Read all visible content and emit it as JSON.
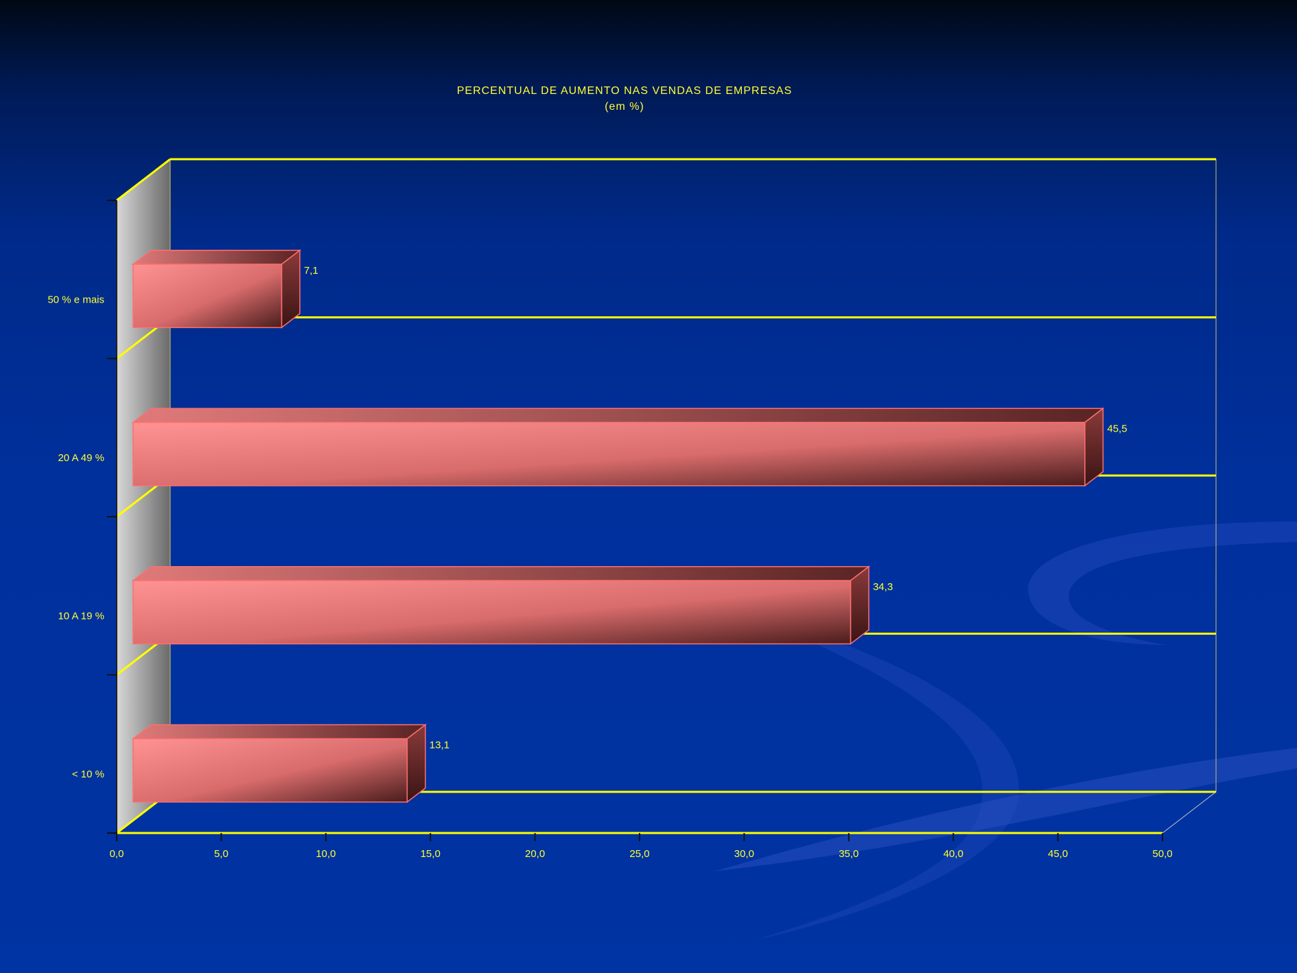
{
  "chart_data": {
    "type": "bar",
    "orientation": "horizontal",
    "style": "3d",
    "title": "PERCENTUAL DE AUMENTO NAS VENDAS DE EMPRESAS",
    "subtitle": "(em %)",
    "categories": [
      "< 10 %",
      "10 A 19 %",
      "20 A 49 %",
      "50 % e mais"
    ],
    "values": [
      13.1,
      34.3,
      45.5,
      7.1
    ],
    "value_labels": [
      "13,1",
      "34,3",
      "45,5",
      "7,1"
    ],
    "xlim": [
      0,
      50
    ],
    "x_ticks": [
      "0,0",
      "5,0",
      "10,0",
      "15,0",
      "20,0",
      "25,0",
      "30,0",
      "35,0",
      "40,0",
      "45,0",
      "50,0"
    ],
    "grid": true,
    "legend": "none",
    "colors": {
      "bar_front": "#ff8e8e",
      "bar_top": "#d86d6d",
      "bar_side": "#7a2f2f",
      "bar_edge": "#ff6f6f",
      "text": "#ffff33",
      "grid": "#ffff00",
      "wall_light": "#cfcfcf",
      "wall_dark": "#6f6f6f"
    }
  }
}
